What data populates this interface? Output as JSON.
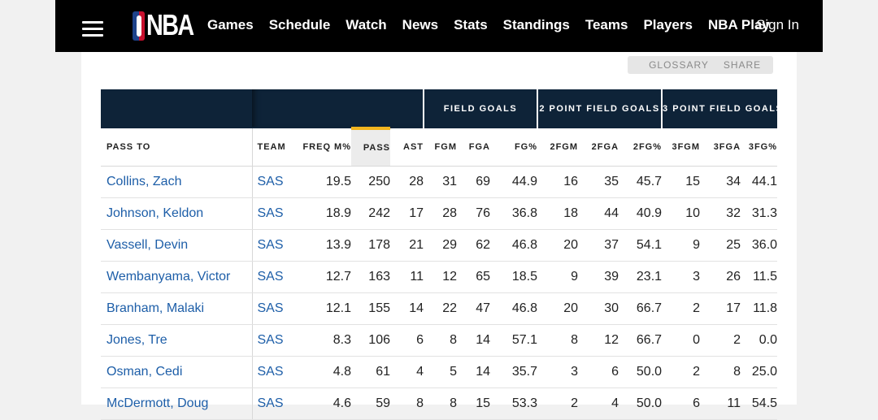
{
  "nav": {
    "brand": "NBA",
    "links": [
      "Games",
      "Schedule",
      "Watch",
      "News",
      "Stats",
      "Standings",
      "Teams",
      "Players",
      "NBA Play"
    ],
    "sign_in": "Sign In"
  },
  "toolbar": {
    "glossary_label": "GLOSSARY",
    "share_label": "SHARE"
  },
  "table": {
    "groups": [
      "FIELD GOALS",
      "2 POINT FIELD GOALS",
      "3 POINT FIELD GOALS"
    ],
    "columns": [
      "PASS TO",
      "TEAM",
      "FREQ M%",
      "PASS",
      "AST",
      "FGM",
      "FGA",
      "FG%",
      "2FGM",
      "2FGA",
      "2FG%",
      "3FGM",
      "3FGA",
      "3FG%"
    ],
    "sorted_column": "PASS",
    "rows": [
      [
        "Collins, Zach",
        "SAS",
        "19.5",
        "250",
        "28",
        "31",
        "69",
        "44.9",
        "16",
        "35",
        "45.7",
        "15",
        "34",
        "44.1"
      ],
      [
        "Johnson, Keldon",
        "SAS",
        "18.9",
        "242",
        "17",
        "28",
        "76",
        "36.8",
        "18",
        "44",
        "40.9",
        "10",
        "32",
        "31.3"
      ],
      [
        "Vassell, Devin",
        "SAS",
        "13.9",
        "178",
        "21",
        "29",
        "62",
        "46.8",
        "20",
        "37",
        "54.1",
        "9",
        "25",
        "36.0"
      ],
      [
        "Wembanyama, Victor",
        "SAS",
        "12.7",
        "163",
        "11",
        "12",
        "65",
        "18.5",
        "9",
        "39",
        "23.1",
        "3",
        "26",
        "11.5"
      ],
      [
        "Branham, Malaki",
        "SAS",
        "12.1",
        "155",
        "14",
        "22",
        "47",
        "46.8",
        "20",
        "30",
        "66.7",
        "2",
        "17",
        "11.8"
      ],
      [
        "Jones, Tre",
        "SAS",
        "8.3",
        "106",
        "6",
        "8",
        "14",
        "57.1",
        "8",
        "12",
        "66.7",
        "0",
        "2",
        "0.0"
      ],
      [
        "Osman, Cedi",
        "SAS",
        "4.8",
        "61",
        "4",
        "5",
        "14",
        "35.7",
        "3",
        "6",
        "50.0",
        "2",
        "8",
        "25.0"
      ],
      [
        "McDermott, Doug",
        "SAS",
        "4.6",
        "59",
        "8",
        "8",
        "15",
        "53.3",
        "2",
        "4",
        "50.0",
        "6",
        "11",
        "54.5"
      ]
    ]
  },
  "colors": {
    "nav_bg": "#000000",
    "header_bg": "#0e2338",
    "link": "#1d5ea8",
    "sort_accent": "#f2b51f"
  }
}
